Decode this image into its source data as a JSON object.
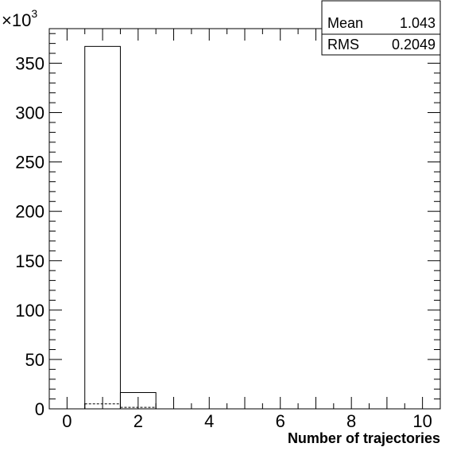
{
  "chart_data": {
    "type": "bar",
    "xlabel": "Number of trajectories",
    "ylabel": "",
    "scale_prefix": "×10",
    "scale_exponent": "3",
    "xlim": [
      -0.5,
      10.5
    ],
    "ylim": [
      0,
      385
    ],
    "x_ticks": [
      0,
      2,
      4,
      6,
      8,
      10
    ],
    "y_ticks": [
      0,
      50,
      100,
      150,
      200,
      250,
      300,
      350
    ],
    "bin_width": 1,
    "series": [
      {
        "style": "solid",
        "bin_centers": [
          1,
          2
        ],
        "values": [
          367,
          16.5
        ]
      },
      {
        "style": "dashed",
        "bin_centers": [
          1,
          2
        ],
        "values": [
          5,
          1.5
        ]
      }
    ],
    "stats": [
      {
        "label": "Mean",
        "value": "1.043"
      },
      {
        "label": "RMS",
        "value": "0.2049"
      }
    ],
    "legend_position": "top-right",
    "grid": false
  }
}
